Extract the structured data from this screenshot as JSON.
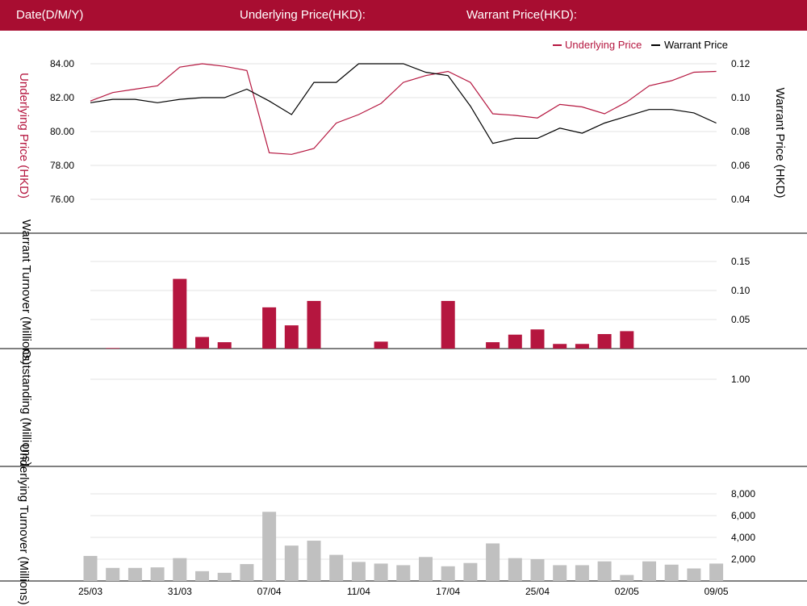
{
  "header": {
    "date_label": "Date(D/M/Y)",
    "underlying_label": "Underlying Price(HKD):",
    "warrant_label": "Warrant Price(HKD):"
  },
  "colors": {
    "brand": "#a80d31",
    "underlying": "#b5163f",
    "warrant": "#000000",
    "volume_bar": "#c0c0c0",
    "grid": "#e3e3e3"
  },
  "chart_data": [
    {
      "type": "line",
      "legend": {
        "placement": "top-right",
        "items": [
          "Underlying Price",
          "Warrant Price"
        ]
      },
      "ylabel_left": "Underlying Price (HKD)",
      "ylabel_right": "Warrant  Price (HKD)",
      "left_ticks": [
        "84.00",
        "82.00",
        "80.00",
        "78.00",
        "76.00"
      ],
      "right_ticks": [
        "0.12",
        "0.10",
        "0.08",
        "0.06",
        "0.04"
      ],
      "ylim_left": [
        75.2,
        84.8
      ],
      "ylim_right": [
        0.032,
        0.128
      ],
      "grid": true,
      "series": [
        {
          "name": "Underlying Price",
          "axis": "left",
          "values": [
            81.8,
            82.3,
            82.5,
            82.7,
            83.8,
            84.0,
            83.85,
            83.6,
            78.75,
            78.65,
            79.0,
            80.5,
            81.0,
            81.65,
            82.9,
            83.3,
            83.55,
            82.9,
            81.05,
            80.95,
            80.8,
            81.6,
            81.45,
            81.05,
            81.75,
            82.7,
            83.0,
            83.5,
            83.55
          ]
        },
        {
          "name": "Warrant Price",
          "axis": "right",
          "values": [
            0.097,
            0.099,
            0.099,
            0.097,
            0.099,
            0.1,
            0.1,
            0.105,
            0.098,
            0.09,
            0.109,
            0.109,
            0.12,
            0.12,
            0.12,
            0.115,
            0.113,
            0.095,
            0.073,
            0.076,
            0.076,
            0.082,
            0.079,
            0.085,
            0.089,
            0.093,
            0.093,
            0.091,
            0.085
          ]
        }
      ]
    },
    {
      "type": "bar",
      "ylabel": "Warrant  Turnover (Millions)",
      "right_ticks": [
        "0.15",
        "0.10",
        "0.05"
      ],
      "ylim": [
        0,
        0.15
      ],
      "grid": true,
      "values": [
        0,
        0.001,
        0,
        0,
        0.12,
        0.02,
        0.011,
        0,
        0.071,
        0.04,
        0.082,
        0,
        0,
        0.012,
        0,
        0,
        0.082,
        0,
        0.011,
        0.024,
        0.033,
        0.008,
        0.008,
        0.025,
        0.03,
        0,
        0,
        0,
        0
      ]
    },
    {
      "type": "bar",
      "ylabel": "Outstanding (Millions)",
      "right_ticks": [
        "1.00"
      ],
      "ylim": [
        0,
        1.0
      ],
      "grid": true,
      "values": [
        0,
        0,
        0,
        0,
        0,
        0,
        0,
        0,
        0,
        0,
        0,
        0,
        0,
        0,
        0,
        0,
        0,
        0,
        0,
        0,
        0,
        0,
        0,
        0,
        0,
        0,
        0,
        0,
        0
      ]
    },
    {
      "type": "bar",
      "ylabel": "Underlying Turnover (Millions)",
      "right_ticks": [
        "8,000",
        "6,000",
        "4,000",
        "2,000"
      ],
      "ylim": [
        0,
        8000
      ],
      "grid": true,
      "values": [
        2300,
        1200,
        1200,
        1250,
        2100,
        900,
        750,
        1550,
        6350,
        3250,
        3700,
        2400,
        1750,
        1600,
        1450,
        2200,
        1350,
        1650,
        3450,
        2100,
        2000,
        1450,
        1450,
        1800,
        550,
        1800,
        1500,
        1150,
        1600
      ]
    }
  ],
  "x_axis": {
    "tick_labels": [
      "25/03",
      "31/03",
      "07/04",
      "11/04",
      "17/04",
      "25/04",
      "02/05",
      "09/05"
    ],
    "tick_indices": [
      0,
      4,
      8,
      12,
      16,
      20,
      24,
      28
    ]
  }
}
